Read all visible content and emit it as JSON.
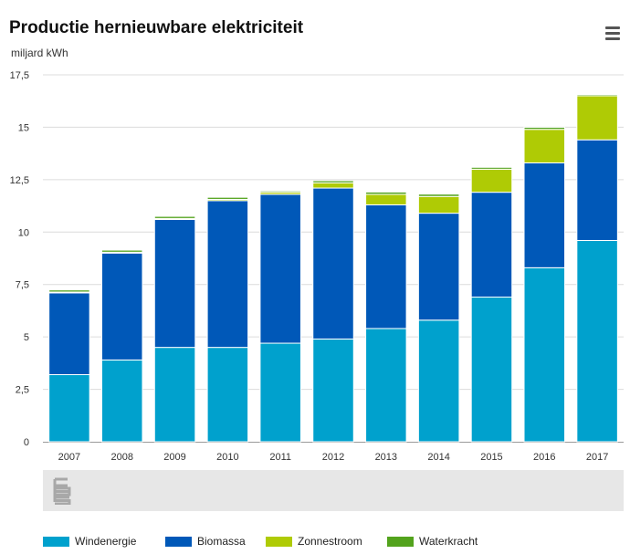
{
  "header": {
    "title": "Productie hernieuwbare elektriciteit",
    "unit": "miljard kWh"
  },
  "menu": {
    "icon": "hamburger-menu-icon"
  },
  "logo": {
    "icon": "cbs-logo-icon"
  },
  "colors": {
    "Windenergie": "#00a1cd",
    "Biomassa": "#0058b8",
    "Zonnestroom": "#afcb05",
    "Waterkracht": "#53a31d"
  },
  "chart_data": {
    "type": "bar",
    "stacked": true,
    "title": "Productie hernieuwbare elektriciteit",
    "ylabel": "miljard kWh",
    "xlabel": "",
    "ylim": [
      0,
      17.5
    ],
    "yticks": [
      "0",
      "2,5",
      "5",
      "7,5",
      "10",
      "12,5",
      "15",
      "17,5"
    ],
    "grid": true,
    "legend_position": "bottom",
    "categories": [
      "2007",
      "2008",
      "2009",
      "2010",
      "2011",
      "2012",
      "2013",
      "2014",
      "2015",
      "2016",
      "2017"
    ],
    "series": [
      {
        "name": "Windenergie",
        "values": [
          3.2,
          3.9,
          4.5,
          4.5,
          4.7,
          4.9,
          5.4,
          5.8,
          6.9,
          8.3,
          9.6
        ]
      },
      {
        "name": "Biomassa",
        "values": [
          3.9,
          5.1,
          6.1,
          7.0,
          7.1,
          7.2,
          5.9,
          5.1,
          5.0,
          5.0,
          4.8
        ]
      },
      {
        "name": "Zonnestroom",
        "values": [
          0.04,
          0.04,
          0.05,
          0.06,
          0.1,
          0.25,
          0.5,
          0.8,
          1.1,
          1.6,
          2.1
        ]
      },
      {
        "name": "Waterkracht",
        "values": [
          0.1,
          0.1,
          0.1,
          0.1,
          0.06,
          0.1,
          0.11,
          0.11,
          0.09,
          0.1,
          0.06
        ]
      }
    ]
  }
}
